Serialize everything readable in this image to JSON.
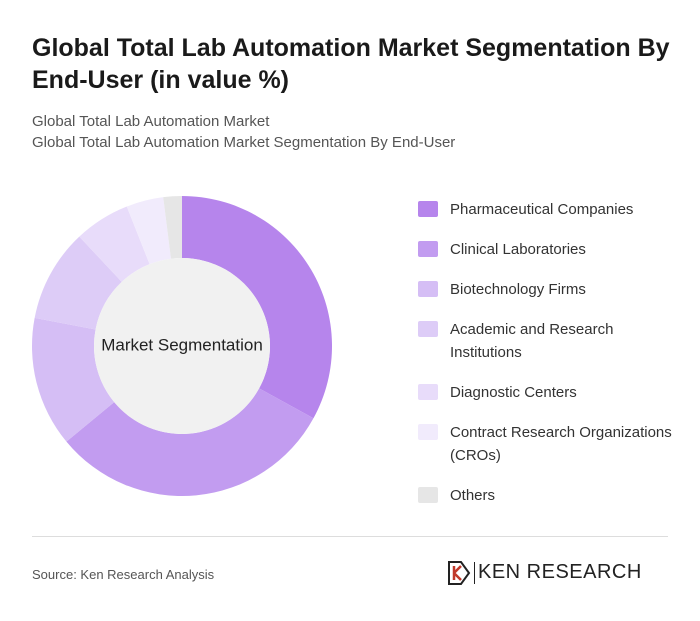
{
  "chart_data": {
    "type": "donut",
    "title": "Global Total Lab Automation Market Segmentation By End-User (in value %)",
    "subtitle": [
      "Global Total Lab Automation Market",
      "Global Total Lab Automation Market Segmentation By End-User"
    ],
    "center_label": "Market Segmentation",
    "categories": [
      "Pharmaceutical Companies",
      "Clinical Laboratories",
      "Biotechnology Firms",
      "Academic and Research Institutions",
      "Diagnostic Centers",
      "Contract Research Organizations (CROs)",
      "Others"
    ],
    "values": [
      33,
      31,
      14,
      10,
      6,
      4,
      2
    ],
    "colors": [
      "#b685ec",
      "#c29cf0",
      "#d5bef5",
      "#ddccf7",
      "#e8dcfa",
      "#f1ebfc",
      "#e6e6e6"
    ],
    "source": "Source: Ken Research Analysis",
    "brand": "KEN RESEARCH"
  }
}
